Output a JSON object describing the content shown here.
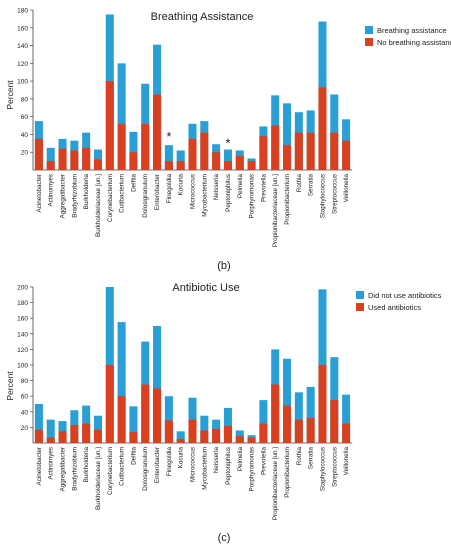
{
  "chart_data": [
    {
      "type": "bar",
      "title": "Breathing Assistance",
      "xlabel": "",
      "ylabel": "Percent",
      "ylim": [
        0,
        180
      ],
      "yticks": [
        20,
        40,
        60,
        80,
        100,
        120,
        140,
        160,
        180
      ],
      "panel_label": "(b)",
      "grid": false,
      "legend_position": "top-right",
      "stacked_overlap": true,
      "categories": [
        "Acinetobacter",
        "Actinomyes",
        "Aggregatibacter",
        "Bradyrhizobium",
        "Burkholderia",
        "Burkholderiaceae [un.]",
        "Corynebacterium",
        "Cutibacterium",
        "Delftia",
        "Dolosigranulum",
        "Enterobacter",
        "Finegoldia",
        "Kocuria",
        "Micrococcus",
        "Mycobacterium",
        "Neisseria",
        "Peptoniphilus",
        "Pelmelia",
        "Porphyromonas",
        "Prevotella",
        "Propionibacteriaceae [un.]",
        "Propionibacterium",
        "Rothia",
        "Serratia",
        "Staphylococcus",
        "Streptococcus",
        "Veillonella"
      ],
      "series": [
        {
          "name": "Breathing assistance",
          "color": "#2a9fd6",
          "values": [
            55,
            25,
            35,
            33,
            42,
            23,
            175,
            120,
            43,
            97,
            141,
            28,
            22,
            52,
            55,
            29,
            23,
            22,
            13,
            49,
            84,
            75,
            65,
            67,
            167,
            85,
            57
          ]
        },
        {
          "name": "No breathing assistance",
          "color": "#d9401f",
          "values": [
            35,
            10,
            24,
            22,
            25,
            12,
            100,
            52,
            20,
            52,
            85,
            10,
            10,
            35,
            42,
            20,
            10,
            16,
            10,
            38,
            50,
            28,
            42,
            42,
            93,
            42,
            33
          ]
        }
      ],
      "annotations": [
        {
          "text": "*",
          "category": "Finegoldia",
          "value": 38
        },
        {
          "text": "*",
          "category": "Peptoniphilus",
          "value": 31
        }
      ]
    },
    {
      "type": "bar",
      "title": "Antibiotic Use",
      "xlabel": "",
      "ylabel": "Percent",
      "ylim": [
        0,
        200
      ],
      "yticks": [
        20,
        40,
        60,
        80,
        100,
        120,
        140,
        160,
        180,
        200
      ],
      "panel_label": "(c)",
      "grid": false,
      "legend_position": "top-right",
      "stacked_overlap": true,
      "categories": [
        "Acinetobacter",
        "Actinomyes",
        "Aggregatibacter",
        "Bradyrhizobium",
        "Burkholderia",
        "Burkholderiaceae [un.]",
        "Corynebacterium",
        "Cutibacterium",
        "Delftia",
        "Dolosigranulum",
        "Enterobacter",
        "Finegoldia",
        "Kocuria",
        "Micrococcus",
        "Mycobacterium",
        "Neisseria",
        "Peptoniphilus",
        "Pelmelia",
        "Porphyromonas",
        "Prevotella",
        "Propionibacteriaceae [un.]",
        "Propionibacterium",
        "Rothia",
        "Serratia",
        "Staphylococcus",
        "Streptococcus",
        "Veillonella"
      ],
      "series": [
        {
          "name": "Did not use antibiotics",
          "color": "#2a9fd6",
          "values": [
            50,
            30,
            28,
            42,
            48,
            35,
            200,
            155,
            47,
            130,
            150,
            60,
            15,
            58,
            35,
            30,
            45,
            16,
            10,
            55,
            120,
            108,
            65,
            72,
            197,
            110,
            62
          ]
        },
        {
          "name": "Used antibiotics",
          "color": "#d9401f",
          "values": [
            17,
            7,
            15,
            23,
            25,
            17,
            100,
            60,
            14,
            75,
            70,
            29,
            5,
            30,
            16,
            18,
            22,
            9,
            7,
            25,
            75,
            48,
            30,
            32,
            100,
            55,
            25
          ]
        }
      ]
    }
  ]
}
